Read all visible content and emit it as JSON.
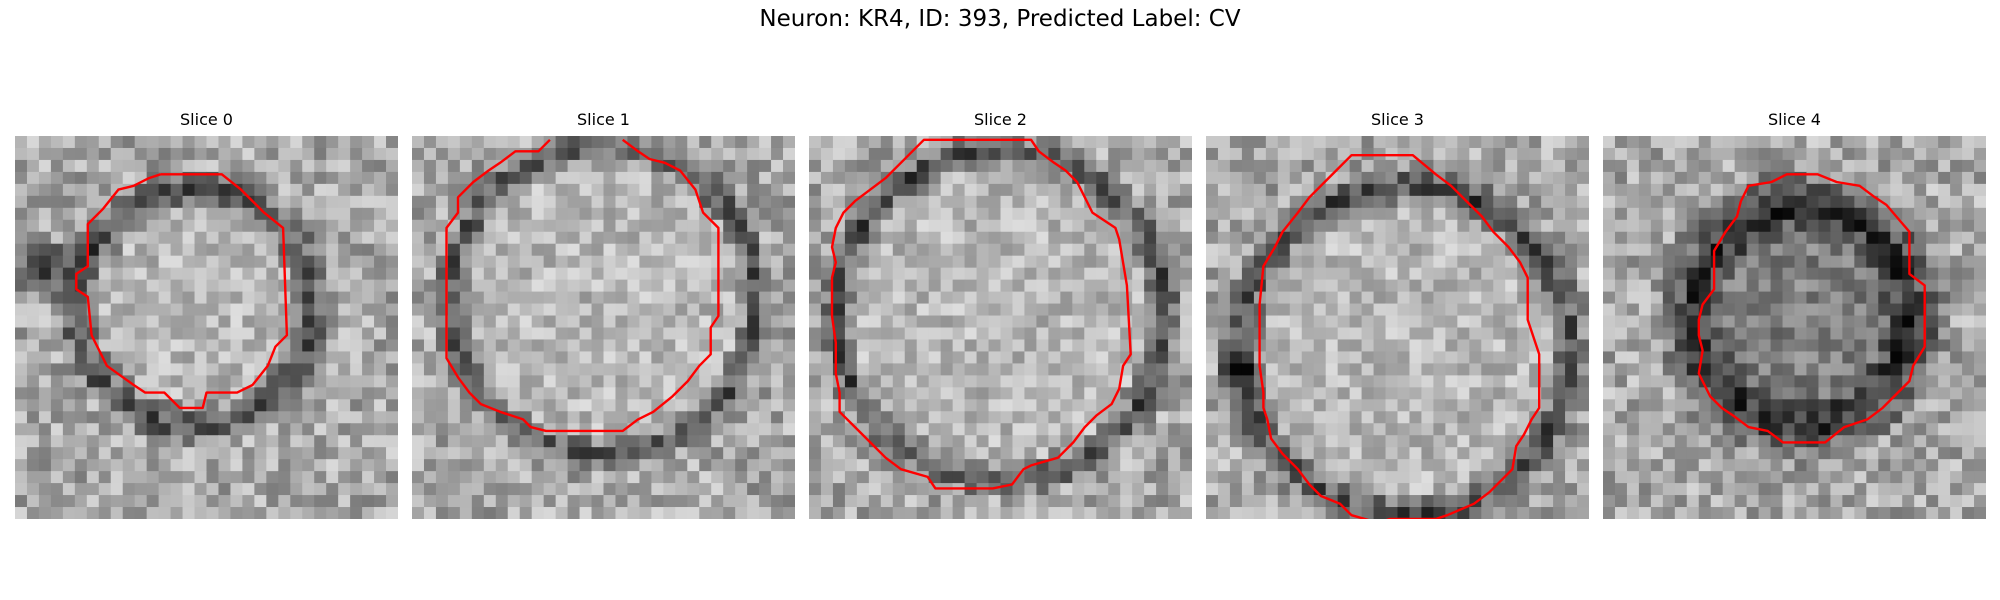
{
  "figure": {
    "title": "Neuron: KR4, ID: 393, Predicted Label: CV"
  },
  "panels": [
    {
      "title": "Slice 0",
      "description": "grayscale EM patch, round vesicle with light center and dark rim, dark blob on left",
      "contour_color": "#ff0000"
    },
    {
      "title": "Slice 1",
      "description": "grayscale EM patch, large round vesicle, contour open at top",
      "contour_color": "#ff0000"
    },
    {
      "title": "Slice 2",
      "description": "grayscale EM patch, large round vesicle filling patch",
      "contour_color": "#ff0000"
    },
    {
      "title": "Slice 3",
      "description": "grayscale EM patch, large round vesicle with thick dark ring",
      "contour_color": "#ff0000"
    },
    {
      "title": "Slice 4",
      "description": "grayscale EM patch, dark irregular blob",
      "contour_color": "#ff0000"
    }
  ]
}
